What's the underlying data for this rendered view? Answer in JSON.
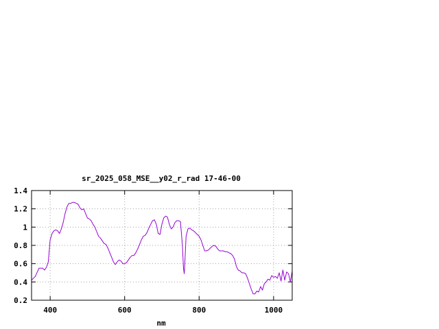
{
  "chart_data": {
    "type": "line",
    "title": "sr_2025_058_MSE__y02_r_rad 17-46-00",
    "xlabel": "nm",
    "ylabel": "",
    "xlim": [
      350,
      1050
    ],
    "ylim": [
      0.2,
      1.4
    ],
    "x_ticks": [
      400,
      600,
      800,
      1000
    ],
    "x_tick_labels": [
      "400",
      "600",
      "800",
      "1000"
    ],
    "y_ticks": [
      0.2,
      0.4,
      0.6,
      0.8,
      1.0,
      1.2,
      1.4
    ],
    "y_tick_labels": [
      "0.2",
      "0.4",
      "0.6",
      "0.8",
      "1",
      "1.2",
      "1.4"
    ],
    "grid": true,
    "legend": "none",
    "series": [
      {
        "color": "#9400d3",
        "x": [
          350,
          360,
          370,
          380,
          385,
          390,
          395,
          400,
          405,
          410,
          415,
          420,
          425,
          430,
          435,
          440,
          445,
          450,
          455,
          460,
          465,
          470,
          475,
          480,
          485,
          490,
          495,
          500,
          505,
          510,
          515,
          520,
          525,
          530,
          535,
          540,
          545,
          550,
          555,
          560,
          565,
          570,
          575,
          580,
          585,
          590,
          595,
          600,
          605,
          610,
          615,
          620,
          625,
          630,
          635,
          640,
          645,
          650,
          655,
          660,
          665,
          670,
          675,
          680,
          685,
          690,
          695,
          700,
          705,
          710,
          715,
          720,
          725,
          730,
          735,
          740,
          745,
          750,
          755,
          758,
          760,
          762,
          765,
          770,
          775,
          780,
          785,
          790,
          795,
          800,
          805,
          810,
          815,
          820,
          825,
          830,
          835,
          840,
          845,
          850,
          855,
          860,
          865,
          870,
          875,
          880,
          885,
          890,
          895,
          900,
          905,
          910,
          915,
          920,
          925,
          930,
          935,
          940,
          945,
          950,
          955,
          960,
          965,
          970,
          975,
          980,
          985,
          990,
          995,
          1000,
          1005,
          1010,
          1015,
          1020,
          1025,
          1030,
          1035,
          1040,
          1045,
          1050
        ],
        "y": [
          0.42,
          0.46,
          0.55,
          0.55,
          0.53,
          0.56,
          0.62,
          0.86,
          0.93,
          0.96,
          0.97,
          0.96,
          0.93,
          0.98,
          1.05,
          1.15,
          1.22,
          1.26,
          1.26,
          1.27,
          1.27,
          1.26,
          1.25,
          1.21,
          1.19,
          1.2,
          1.15,
          1.1,
          1.09,
          1.07,
          1.03,
          1.0,
          0.95,
          0.9,
          0.88,
          0.85,
          0.82,
          0.81,
          0.77,
          0.72,
          0.67,
          0.62,
          0.59,
          0.62,
          0.64,
          0.63,
          0.6,
          0.6,
          0.61,
          0.64,
          0.67,
          0.69,
          0.69,
          0.72,
          0.76,
          0.81,
          0.86,
          0.9,
          0.91,
          0.94,
          0.99,
          1.03,
          1.07,
          1.08,
          1.03,
          0.93,
          0.92,
          1.03,
          1.1,
          1.12,
          1.11,
          1.03,
          0.98,
          1.0,
          1.05,
          1.07,
          1.07,
          1.06,
          0.8,
          0.55,
          0.49,
          0.65,
          0.9,
          0.98,
          0.99,
          0.97,
          0.96,
          0.94,
          0.92,
          0.9,
          0.86,
          0.8,
          0.74,
          0.74,
          0.75,
          0.77,
          0.79,
          0.8,
          0.79,
          0.76,
          0.74,
          0.74,
          0.74,
          0.73,
          0.73,
          0.72,
          0.71,
          0.69,
          0.65,
          0.57,
          0.53,
          0.52,
          0.5,
          0.5,
          0.49,
          0.44,
          0.38,
          0.32,
          0.27,
          0.27,
          0.3,
          0.29,
          0.35,
          0.31,
          0.38,
          0.4,
          0.43,
          0.42,
          0.47,
          0.45,
          0.46,
          0.44,
          0.5,
          0.41,
          0.53,
          0.42,
          0.51,
          0.49,
          0.4,
          0.52
        ]
      }
    ]
  }
}
